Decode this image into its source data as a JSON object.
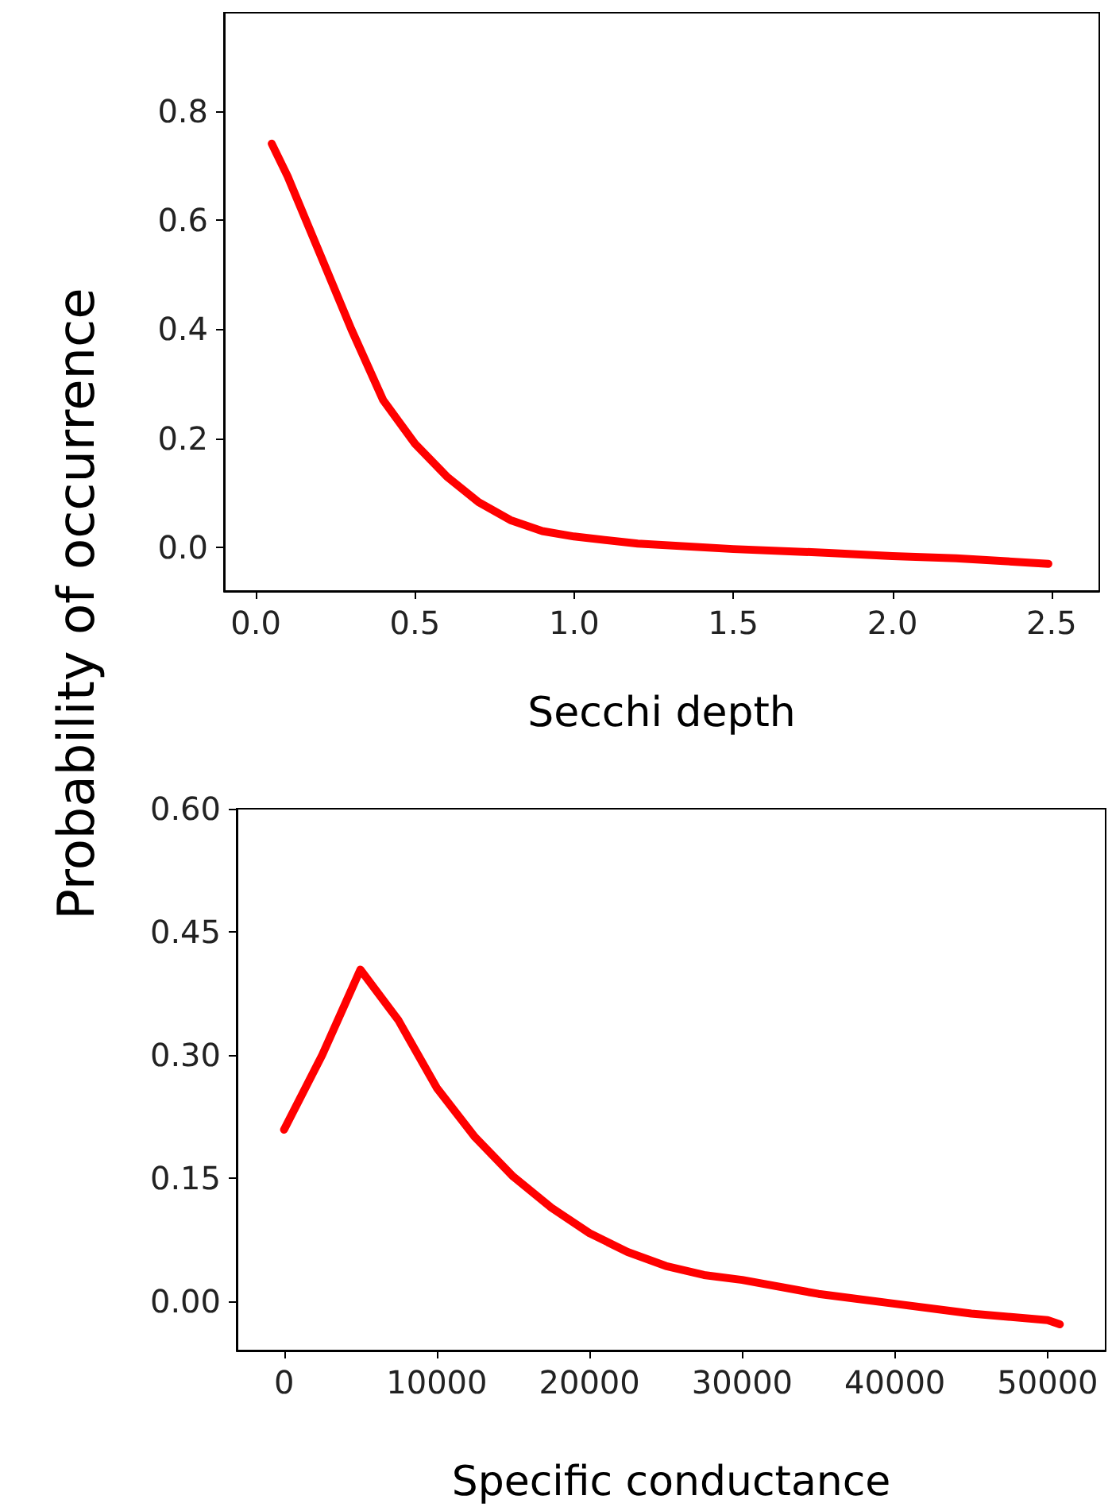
{
  "chart_data": [
    {
      "type": "line",
      "ylabel": "Probability of occurrence",
      "xlabel": "Secchi depth",
      "xlim": [
        -0.1,
        2.65
      ],
      "xticks": [
        {
          "value": 0,
          "label": "0.0"
        },
        0.5,
        {
          "value": 1,
          "label": "1.0"
        },
        1.5,
        {
          "value": 2,
          "label": "2.0"
        },
        2.5
      ],
      "ylim": [
        -0.08,
        0.98
      ],
      "yticks": [
        {
          "value": 0,
          "label": "0.0"
        },
        0.2,
        0.4,
        0.6,
        0.8
      ],
      "grid": false,
      "marker": "none",
      "line_style": "solid",
      "series": [
        {
          "color": "#ff0000",
          "x": [
            0.05,
            0.1,
            0.2,
            0.3,
            0.4,
            0.5,
            0.6,
            0.7,
            0.8,
            0.9,
            1.0,
            1.2,
            1.5,
            1.8,
            2.0,
            2.2,
            2.49
          ],
          "values": [
            0.74,
            0.68,
            0.54,
            0.4,
            0.27,
            0.19,
            0.13,
            0.083,
            0.05,
            0.03,
            0.02,
            0.007,
            -0.003,
            -0.01,
            -0.016,
            -0.02,
            -0.03
          ]
        }
      ]
    },
    {
      "type": "line",
      "xlabel": "Specific conductance",
      "xlim": [
        -3100,
        53800
      ],
      "xticks": [
        0,
        10000,
        20000,
        30000,
        40000,
        50000
      ],
      "ylim": [
        -0.06,
        0.6
      ],
      "yticks": [
        {
          "value": 0,
          "label": "0.00"
        },
        {
          "value": 0.15,
          "label": "0.15"
        },
        {
          "value": 0.3,
          "label": "0.30"
        },
        {
          "value": 0.45,
          "label": "0.45"
        },
        {
          "value": 0.6,
          "label": "0.60"
        }
      ],
      "grid": false,
      "marker": "none",
      "line_style": "solid",
      "series": [
        {
          "color": "#ff0000",
          "x": [
            0,
            2500,
            5000,
            7500,
            10000,
            12500,
            15000,
            17500,
            20000,
            22500,
            25000,
            27500,
            30000,
            35000,
            40000,
            45000,
            50000,
            50800
          ],
          "values": [
            0.209,
            0.3,
            0.404,
            0.342,
            0.26,
            0.2,
            0.152,
            0.114,
            0.083,
            0.06,
            0.043,
            0.032,
            0.026,
            0.009,
            -0.003,
            -0.015,
            -0.023,
            -0.028
          ]
        }
      ]
    }
  ]
}
